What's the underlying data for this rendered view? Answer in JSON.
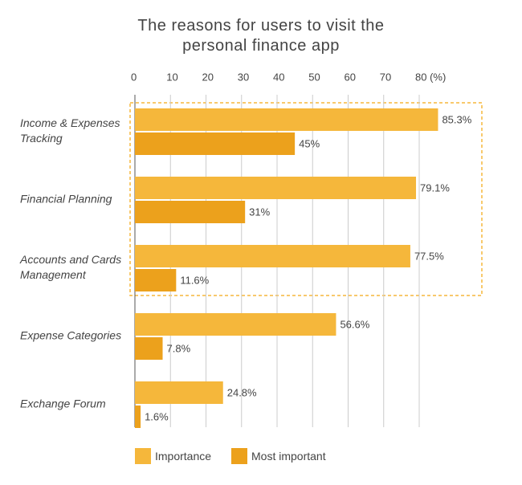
{
  "chart_data": {
    "type": "hbar",
    "title": "The reasons for users to visit the personal finance app",
    "categories": [
      "Income & Expenses Tracking",
      "Financial Planning",
      "Accounts and Cards Management",
      "Expense Categories",
      "Exchange Forum"
    ],
    "series": [
      {
        "name": "Importance",
        "color": "#f5b73b",
        "values": [
          85.3,
          79.1,
          77.5,
          56.6,
          24.8
        ],
        "value_labels": [
          "85.3%",
          "79.1%",
          "77.5%",
          "56.6%",
          "24.8%"
        ]
      },
      {
        "name": "Most important",
        "color": "#eca11c",
        "values": [
          45,
          31,
          11.6,
          7.8,
          1.6
        ],
        "value_labels": [
          "45%",
          "31%",
          "11.6%",
          "7.8%",
          "1.6%"
        ]
      }
    ],
    "xlim": [
      0,
      80
    ],
    "xticks": [
      0,
      10,
      20,
      30,
      40,
      50,
      60,
      70,
      {
        "value": 80,
        "label": "80 (%)"
      }
    ],
    "grid": true,
    "legend": "bottom"
  }
}
